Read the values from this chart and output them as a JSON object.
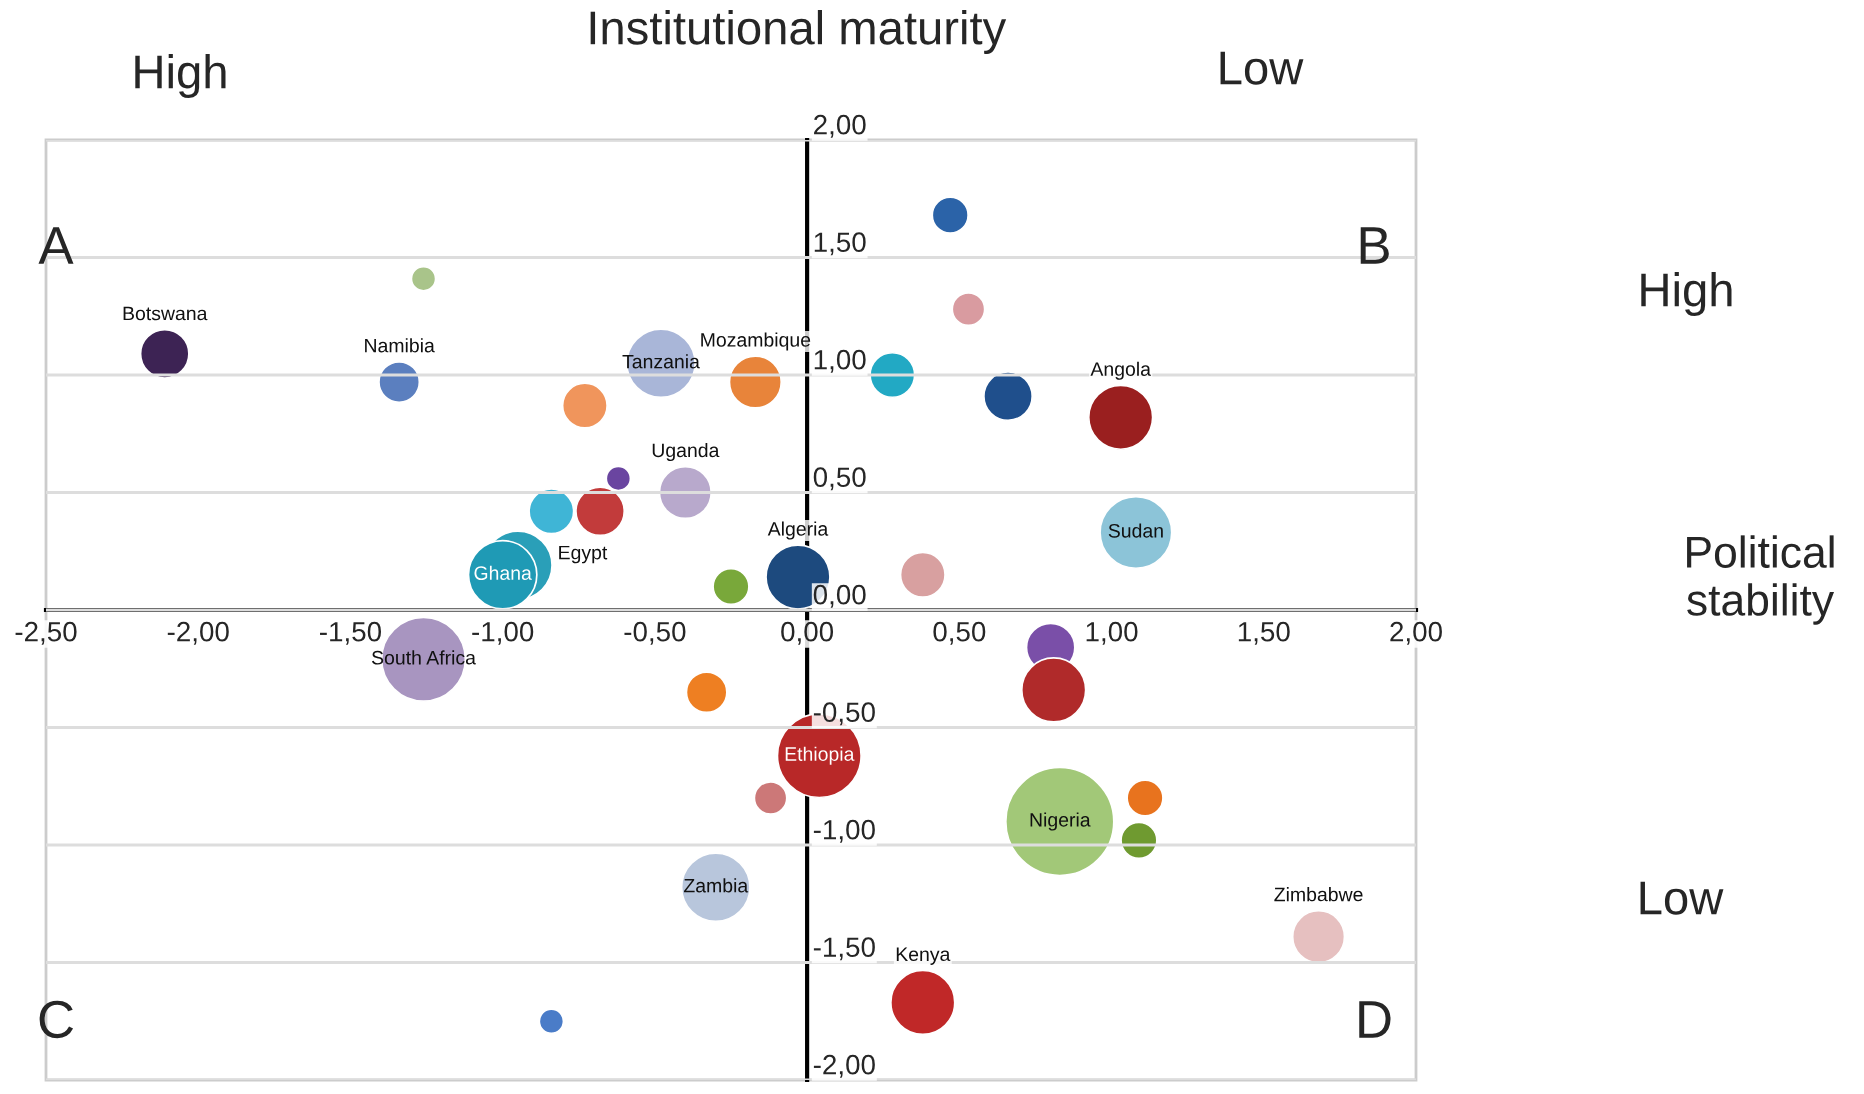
{
  "chart_data": {
    "type": "bubble",
    "xlabel": "Institutional maturity",
    "x": [
      -2.11,
      -1.26,
      -1.34,
      -0.48,
      -0.17,
      -0.73,
      -0.62,
      -0.4,
      -0.84,
      -0.68,
      -0.95,
      -1.0,
      -0.25,
      -0.03,
      0.38,
      0.28,
      0.47,
      0.53,
      0.66,
      1.03,
      1.08,
      -1.26,
      -0.33,
      0.04,
      -0.12,
      -0.3,
      -0.84,
      0.38,
      0.8,
      0.81,
      0.83,
      1.11,
      1.09,
      1.68
    ],
    "values": [
      1.09,
      1.41,
      0.97,
      1.05,
      0.97,
      0.87,
      0.56,
      0.5,
      0.42,
      0.42,
      0.19,
      0.15,
      0.1,
      0.14,
      0.15,
      1.0,
      1.68,
      1.28,
      0.91,
      0.82,
      0.33,
      -0.21,
      -0.35,
      -0.62,
      -0.8,
      -1.18,
      -1.75,
      -1.67,
      -0.16,
      -0.34,
      -0.9,
      -0.8,
      -0.98,
      -1.39
    ],
    "sizes": [
      0.2,
      0.05,
      0.14,
      0.4,
      0.23,
      0.17,
      0.05,
      0.23,
      0.17,
      0.2,
      0.4,
      0.4,
      0.11,
      0.35,
      0.17,
      0.17,
      0.11,
      0.09,
      0.2,
      0.35,
      0.44,
      0.6,
      0.14,
      0.6,
      0.09,
      0.4,
      0.05,
      0.35,
      0.2,
      0.35,
      1,
      0.11,
      0.11,
      0.23
    ],
    "colors": [
      "#3d2354",
      "#a9c48a",
      "#5b7fbf",
      "#a9b6d8",
      "#e8843a",
      "#f0955c",
      "#6a45a0",
      "#b8a9cc",
      "#3fb5d6",
      "#c23b3b",
      "#2a9fb8",
      "#1f9ab5",
      "#79a83a",
      "#1d4a7e",
      "#d8a0a0",
      "#22a9c4",
      "#2b63a8",
      "#d99ba0",
      "#1f4f8c",
      "#9a1f1f",
      "#8cc4d8",
      "#a895c0",
      "#ee7f22",
      "#b82828",
      "#cc7878",
      "#b8c6dc",
      "#4a7cc8",
      "#c02828",
      "#7a4fa8",
      "#b02a2a",
      "#a2c878",
      "#e8731e",
      "#6f9a30",
      "#e6c0c0"
    ],
    "annotations": [
      {
        "text": "Botswana",
        "x": -2.11,
        "y": 1.09
      },
      {
        "text": "Namibia",
        "x": -1.34,
        "y": 0.97
      },
      {
        "text": "Tanzania",
        "x": -0.48,
        "y": 1.05
      },
      {
        "text": "Mozambique",
        "x": -0.17,
        "y": 0.97
      },
      {
        "text": "Uganda",
        "x": -0.4,
        "y": 0.5
      },
      {
        "text": "Egypt",
        "x": -0.95,
        "y": 0.19
      },
      {
        "text": "Ghana",
        "x": -1.0,
        "y": 0.15
      },
      {
        "text": "Algeria",
        "x": -0.03,
        "y": 0.14
      },
      {
        "text": "Angola",
        "x": 1.03,
        "y": 0.82
      },
      {
        "text": "Sudan",
        "x": 1.08,
        "y": 0.33
      },
      {
        "text": "South Africa",
        "x": -1.26,
        "y": -0.21
      },
      {
        "text": "Ethiopia",
        "x": 0.04,
        "y": -0.62
      },
      {
        "text": "Zambia",
        "x": -0.3,
        "y": -1.18
      },
      {
        "text": "Kenya",
        "x": 0.38,
        "y": -1.67
      },
      {
        "text": "Nigeria",
        "x": 0.83,
        "y": -0.9
      },
      {
        "text": "Zimbabwe",
        "x": 1.68,
        "y": -1.39
      },
      "High",
      "Low",
      "A",
      "B",
      "C",
      "D",
      "High",
      "Political stability",
      "Low"
    ],
    "xlim": [
      -2.5,
      2.0
    ],
    "ylim": [
      -2.0,
      2.0
    ],
    "xticks": [
      {
        "value": -2.5,
        "label": "-2,50"
      },
      {
        "value": -2.0,
        "label": "-2,00"
      },
      {
        "value": -1.5,
        "label": "-1,50"
      },
      {
        "value": -1.0,
        "label": "-1,00"
      },
      {
        "value": -0.5,
        "label": "-0,50"
      },
      {
        "value": 0,
        "label": "0,00"
      },
      {
        "value": 0.5,
        "label": "0,50"
      },
      {
        "value": 1.0,
        "label": "1,00"
      },
      {
        "value": 1.5,
        "label": "1,50"
      },
      {
        "value": 2.0,
        "label": "2,00"
      }
    ],
    "yticks": [
      {
        "value": -2.0,
        "label": "-2,00"
      },
      {
        "value": -1.5,
        "label": "-1,50"
      },
      {
        "value": -1.0,
        "label": "-1,00"
      },
      {
        "value": -0.5,
        "label": "-0,50"
      },
      {
        "value": 0,
        "label": "0,00"
      },
      {
        "value": 0.5,
        "label": "0,50"
      },
      {
        "value": 1.0,
        "label": "1,00"
      },
      {
        "value": 1.5,
        "label": "1,50"
      },
      {
        "value": 2.0,
        "label": "2,00"
      }
    ],
    "grid": "y"
  }
}
